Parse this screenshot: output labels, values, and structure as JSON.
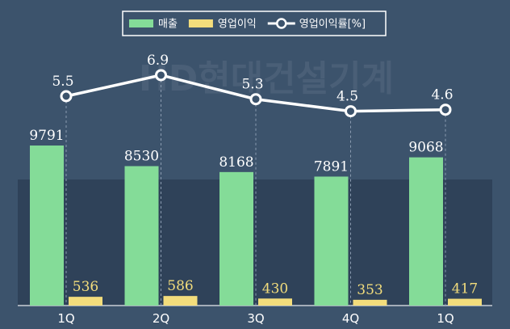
{
  "chart_data": {
    "type": "combo",
    "watermark": "HD현대건설기계",
    "categories": [
      "1Q",
      "2Q",
      "3Q",
      "4Q",
      "1Q"
    ],
    "series": [
      {
        "name": "매출",
        "type": "bar",
        "color": "#84dc98",
        "values": [
          9791,
          8530,
          8168,
          7891,
          9068
        ]
      },
      {
        "name": "영업이익",
        "type": "bar",
        "color": "#f3dd7c",
        "values": [
          536,
          586,
          430,
          353,
          417
        ]
      },
      {
        "name": "영업이익률[%]",
        "type": "line",
        "axis": "y2",
        "color": "#ffffff",
        "values": [
          5.5,
          6.9,
          5.3,
          4.5,
          4.6
        ]
      }
    ]
  }
}
